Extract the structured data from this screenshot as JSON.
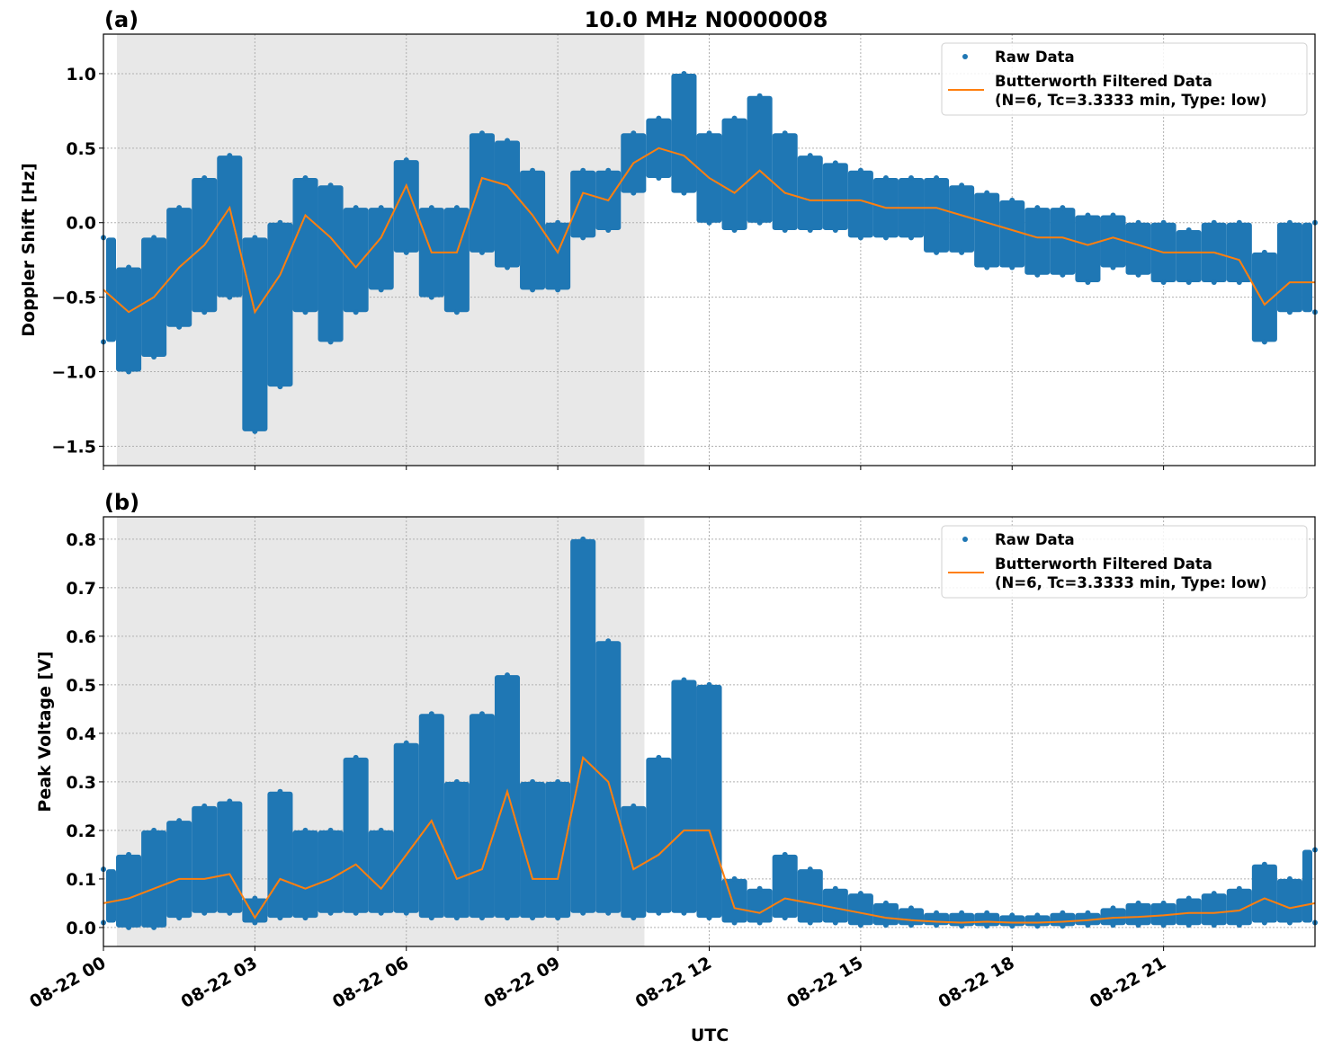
{
  "title": "10.0 MHz N0000008",
  "colors": {
    "raw": "#1f77b4",
    "filtered": "#ff7f0e",
    "shade": "#e8e8e8"
  },
  "xlabel": "UTC",
  "x_range": [
    "08-22 00:00",
    "08-23 00:00"
  ],
  "x_ticks": [
    "08-22 00",
    "08-22 03",
    "08-22 06",
    "08-22 09",
    "08-22 12",
    "08-22 15",
    "08-22 18",
    "08-22 21"
  ],
  "x_tick_times": [
    "08-22 00:00",
    "08-22 03:00",
    "08-22 06:00",
    "08-22 09:00",
    "08-22 12:00",
    "08-22 15:00",
    "08-22 18:00",
    "08-22 21:00"
  ],
  "shaded_interval": [
    "08-22 00:16",
    "08-22 10:43"
  ],
  "grid": true,
  "chart_data": [
    {
      "type": "scatter+line",
      "panel_label": "(a)",
      "ylabel": "Doppler Shift [Hz]",
      "ylim": [
        -1.63,
        1.265
      ],
      "y_ticks": [
        -1.5,
        -1.0,
        -0.5,
        0.0,
        0.5,
        1.0
      ],
      "y_tick_labels": [
        "−1.5",
        "−1.0",
        "−0.5",
        "0.0",
        "0.5",
        "1.0"
      ],
      "legend": {
        "placement": "upper right",
        "raw": "Raw Data",
        "filtered_line1": "Butterworth Filtered Data",
        "filtered_line2": "(N=6, Tc=3.3333 min, Type: low)"
      },
      "time_hours": [
        0,
        0.5,
        1,
        1.5,
        2,
        2.5,
        3,
        3.5,
        4,
        4.5,
        5,
        5.5,
        6,
        6.5,
        7,
        7.5,
        8,
        8.5,
        9,
        9.5,
        10,
        10.5,
        11,
        11.5,
        12,
        12.5,
        13,
        13.5,
        14,
        14.5,
        15,
        15.5,
        16,
        16.5,
        17,
        17.5,
        18,
        18.5,
        19,
        19.5,
        20,
        20.5,
        21,
        21.5,
        22,
        22.5,
        23,
        23.5,
        24
      ],
      "filtered": [
        -0.45,
        -0.6,
        -0.5,
        -0.3,
        -0.15,
        0.1,
        -0.6,
        -0.35,
        0.05,
        -0.1,
        -0.3,
        -0.1,
        0.25,
        -0.2,
        -0.2,
        0.3,
        0.25,
        0.05,
        -0.2,
        0.2,
        0.15,
        0.4,
        0.5,
        0.45,
        0.3,
        0.2,
        0.35,
        0.2,
        0.15,
        0.15,
        0.15,
        0.1,
        0.1,
        0.1,
        0.05,
        0.0,
        -0.05,
        -0.1,
        -0.1,
        -0.15,
        -0.1,
        -0.15,
        -0.2,
        -0.2,
        -0.2,
        -0.25,
        -0.55,
        -0.4,
        -0.4
      ],
      "raw_min": [
        -0.8,
        -1.0,
        -0.9,
        -0.7,
        -0.6,
        -0.5,
        -1.4,
        -1.1,
        -0.6,
        -0.8,
        -0.6,
        -0.45,
        -0.2,
        -0.5,
        -0.6,
        -0.2,
        -0.3,
        -0.45,
        -0.45,
        -0.1,
        -0.05,
        0.2,
        0.3,
        0.2,
        0.0,
        -0.05,
        0.0,
        -0.05,
        -0.05,
        -0.05,
        -0.1,
        -0.1,
        -0.1,
        -0.2,
        -0.2,
        -0.3,
        -0.3,
        -0.35,
        -0.35,
        -0.4,
        -0.3,
        -0.35,
        -0.4,
        -0.4,
        -0.4,
        -0.4,
        -0.8,
        -0.6,
        -0.6
      ],
      "raw_max": [
        -0.1,
        -0.3,
        -0.1,
        0.1,
        0.3,
        0.45,
        -0.1,
        0.0,
        0.3,
        0.25,
        0.1,
        0.1,
        0.42,
        0.1,
        0.1,
        0.6,
        0.55,
        0.35,
        0.0,
        0.35,
        0.35,
        0.6,
        0.7,
        1.0,
        0.6,
        0.7,
        0.85,
        0.6,
        0.45,
        0.4,
        0.35,
        0.3,
        0.3,
        0.3,
        0.25,
        0.2,
        0.15,
        0.1,
        0.1,
        0.05,
        0.05,
        0.0,
        0.0,
        -0.05,
        0.0,
        0.0,
        -0.2,
        0.0,
        0.0
      ]
    },
    {
      "type": "scatter+line",
      "panel_label": "(b)",
      "ylabel": "Peak Voltage [V]",
      "ylim": [
        -0.039,
        0.846
      ],
      "y_ticks": [
        0.0,
        0.1,
        0.2,
        0.3,
        0.4,
        0.5,
        0.6,
        0.7,
        0.8
      ],
      "y_tick_labels": [
        "0.0",
        "0.1",
        "0.2",
        "0.3",
        "0.4",
        "0.5",
        "0.6",
        "0.7",
        "0.8"
      ],
      "legend": {
        "placement": "upper right",
        "raw": "Raw Data",
        "filtered_line1": "Butterworth Filtered Data",
        "filtered_line2": "(N=6, Tc=3.3333 min, Type: low)"
      },
      "time_hours": [
        0,
        0.5,
        1,
        1.5,
        2,
        2.5,
        3,
        3.5,
        4,
        4.5,
        5,
        5.5,
        6,
        6.5,
        7,
        7.5,
        8,
        8.5,
        9,
        9.5,
        10,
        10.5,
        11,
        11.5,
        12,
        12.5,
        13,
        13.5,
        14,
        14.5,
        15,
        15.5,
        16,
        16.5,
        17,
        17.5,
        18,
        18.5,
        19,
        19.5,
        20,
        20.5,
        21,
        21.5,
        22,
        22.5,
        23,
        23.5,
        24
      ],
      "filtered": [
        0.05,
        0.06,
        0.08,
        0.1,
        0.1,
        0.11,
        0.02,
        0.1,
        0.08,
        0.1,
        0.13,
        0.08,
        0.15,
        0.22,
        0.1,
        0.12,
        0.28,
        0.1,
        0.1,
        0.35,
        0.3,
        0.12,
        0.15,
        0.2,
        0.2,
        0.04,
        0.03,
        0.06,
        0.05,
        0.04,
        0.03,
        0.02,
        0.015,
        0.012,
        0.01,
        0.012,
        0.01,
        0.01,
        0.012,
        0.015,
        0.02,
        0.022,
        0.025,
        0.03,
        0.03,
        0.035,
        0.06,
        0.04,
        0.05
      ],
      "raw_min": [
        0.01,
        0.0,
        0.0,
        0.02,
        0.03,
        0.03,
        0.01,
        0.02,
        0.02,
        0.03,
        0.03,
        0.03,
        0.03,
        0.02,
        0.02,
        0.02,
        0.02,
        0.02,
        0.02,
        0.03,
        0.03,
        0.02,
        0.03,
        0.03,
        0.02,
        0.01,
        0.01,
        0.02,
        0.01,
        0.01,
        0.005,
        0.005,
        0.005,
        0.005,
        0.003,
        0.003,
        0.003,
        0.003,
        0.003,
        0.005,
        0.005,
        0.005,
        0.005,
        0.005,
        0.005,
        0.005,
        0.01,
        0.01,
        0.01
      ],
      "raw_max": [
        0.12,
        0.15,
        0.2,
        0.22,
        0.25,
        0.26,
        0.06,
        0.28,
        0.2,
        0.2,
        0.35,
        0.2,
        0.38,
        0.44,
        0.3,
        0.44,
        0.52,
        0.3,
        0.3,
        0.8,
        0.59,
        0.25,
        0.35,
        0.51,
        0.5,
        0.1,
        0.08,
        0.15,
        0.12,
        0.08,
        0.07,
        0.05,
        0.04,
        0.03,
        0.03,
        0.03,
        0.025,
        0.025,
        0.03,
        0.03,
        0.04,
        0.05,
        0.05,
        0.06,
        0.07,
        0.08,
        0.13,
        0.1,
        0.16
      ]
    }
  ]
}
